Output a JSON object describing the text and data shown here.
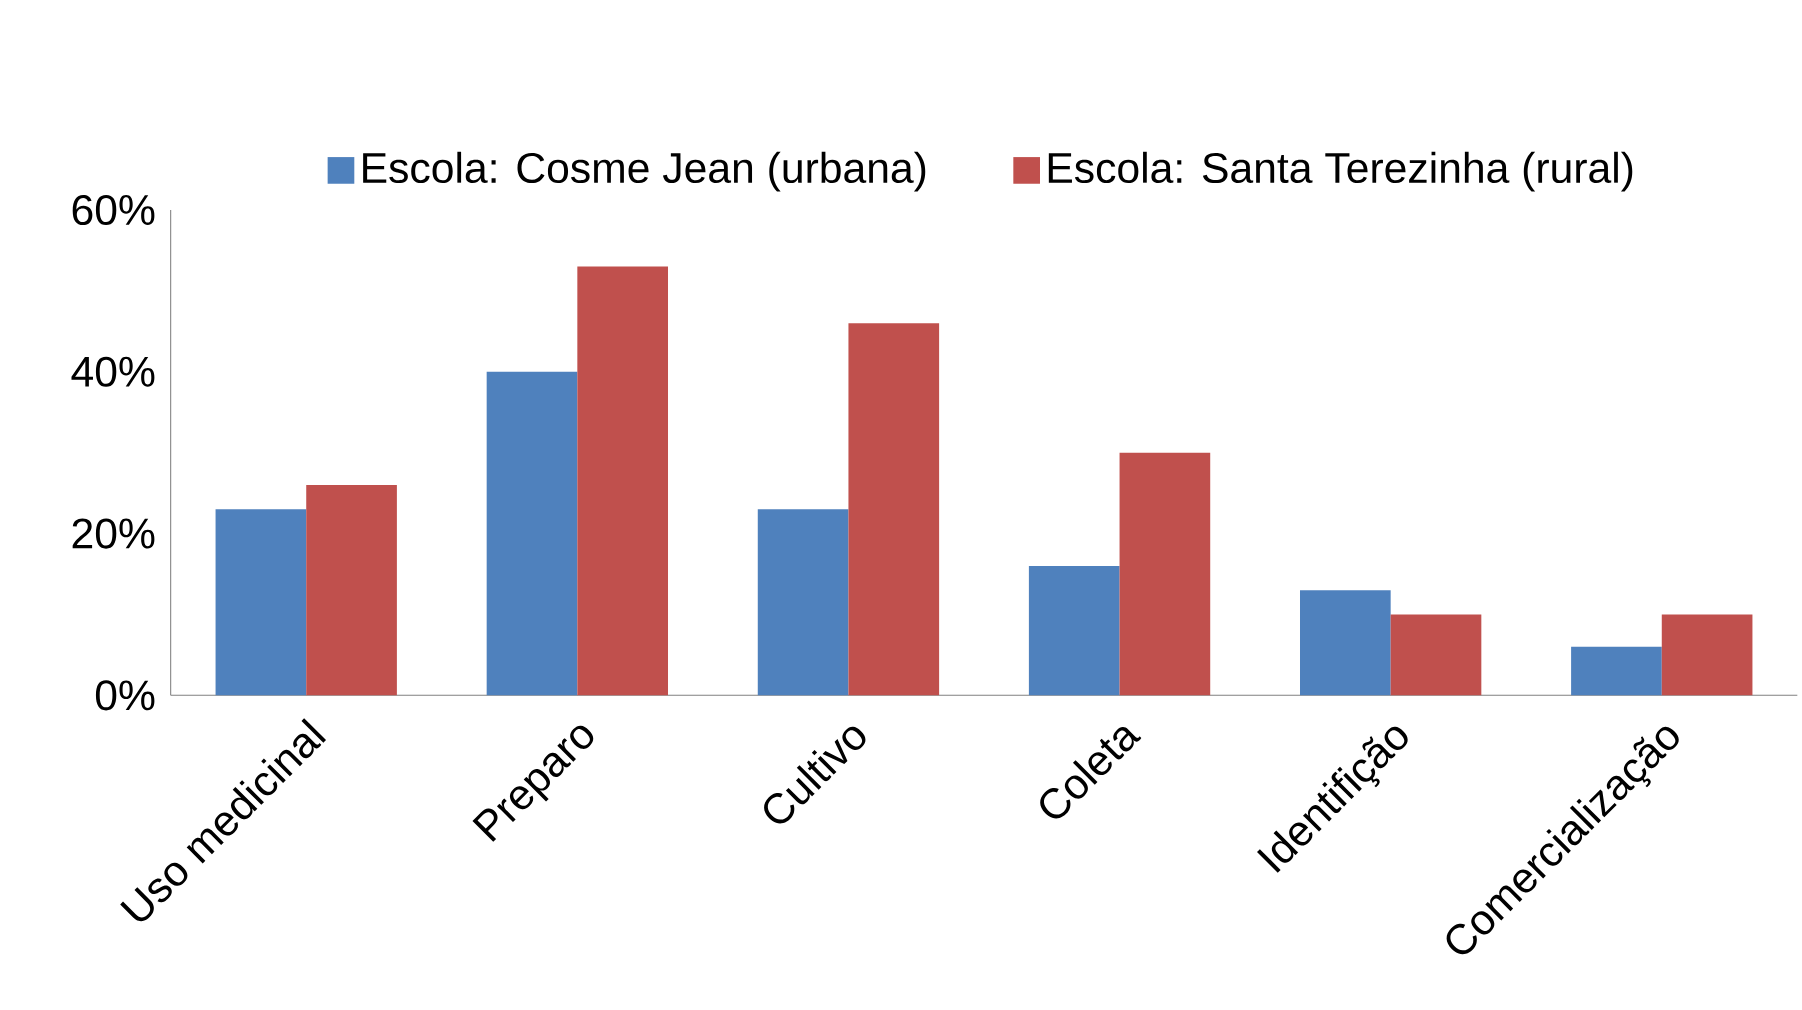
{
  "chart_data": {
    "type": "bar",
    "categories": [
      "Uso medicinal",
      "Preparo",
      "Cultivo",
      "Coleta",
      "Identifição",
      "Comercialização"
    ],
    "series": [
      {
        "name": "Escola: Cosme Jean (urbana)",
        "color": "#4f81bd",
        "values": [
          23,
          40,
          23,
          16,
          13,
          6
        ]
      },
      {
        "name": "Escola: Santa Terezinha (rural)",
        "color": "#c0504d",
        "values": [
          26,
          53,
          46,
          30,
          10,
          10
        ]
      }
    ],
    "ylim": [
      0,
      60
    ],
    "yticks": [
      {
        "value": 0,
        "label": "0%"
      },
      {
        "value": 20,
        "label": "20%"
      },
      {
        "value": 40,
        "label": "40%"
      },
      {
        "value": 60,
        "label": "60%"
      }
    ],
    "grid": false,
    "legend": "top"
  }
}
